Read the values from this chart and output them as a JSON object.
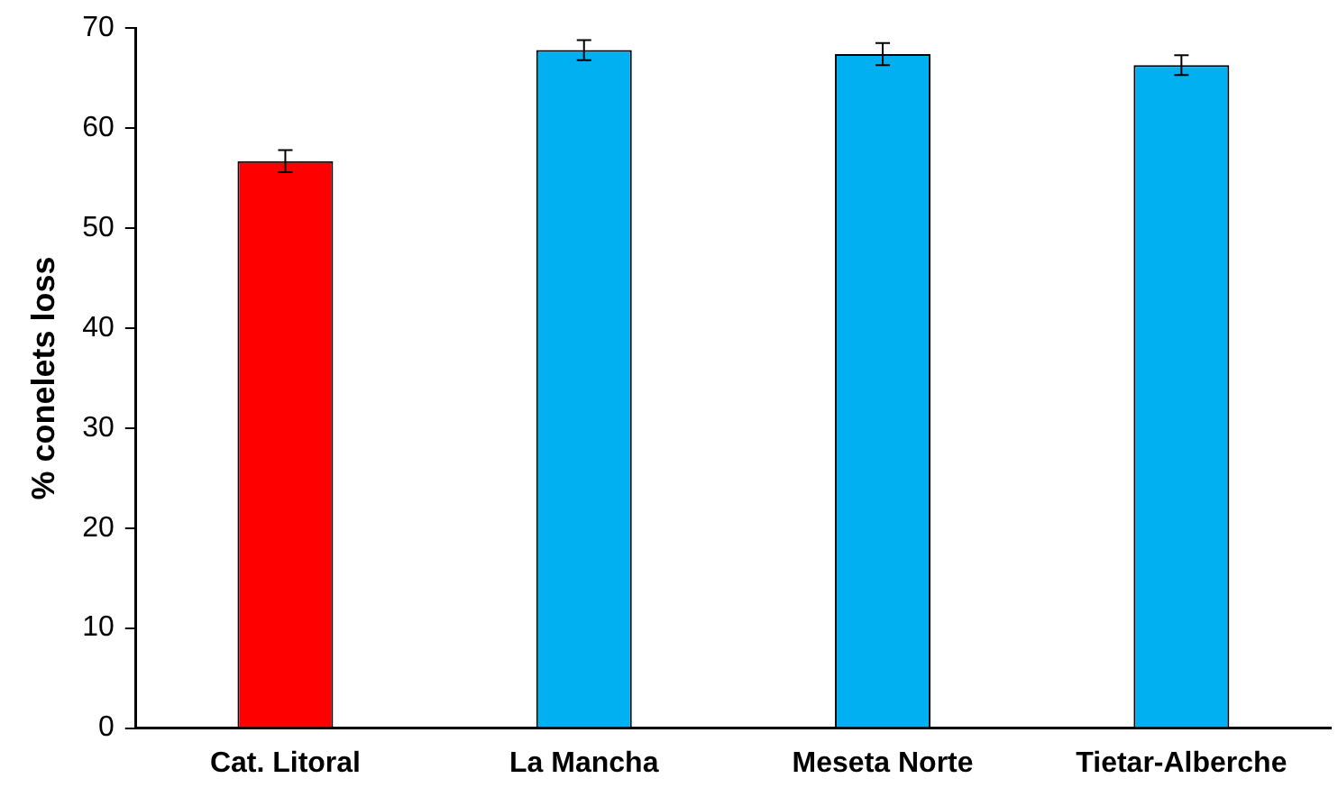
{
  "chart_data": {
    "type": "bar",
    "ylabel": "% conelets loss",
    "categories": [
      "Cat. Litoral",
      "La Mancha",
      "Meseta Norte",
      "Tietar-Alberche"
    ],
    "values": [
      56.7,
      67.8,
      67.4,
      66.3
    ],
    "colors": [
      "#ff0000",
      "#00b0f0",
      "#00b0f0",
      "#00b0f0"
    ],
    "errors": [
      1.1,
      1.0,
      1.1,
      1.0
    ],
    "ylim": [
      0,
      70
    ],
    "yticks": [
      0,
      10,
      20,
      30,
      40,
      50,
      60,
      70
    ],
    "grid": false,
    "legend": false
  }
}
